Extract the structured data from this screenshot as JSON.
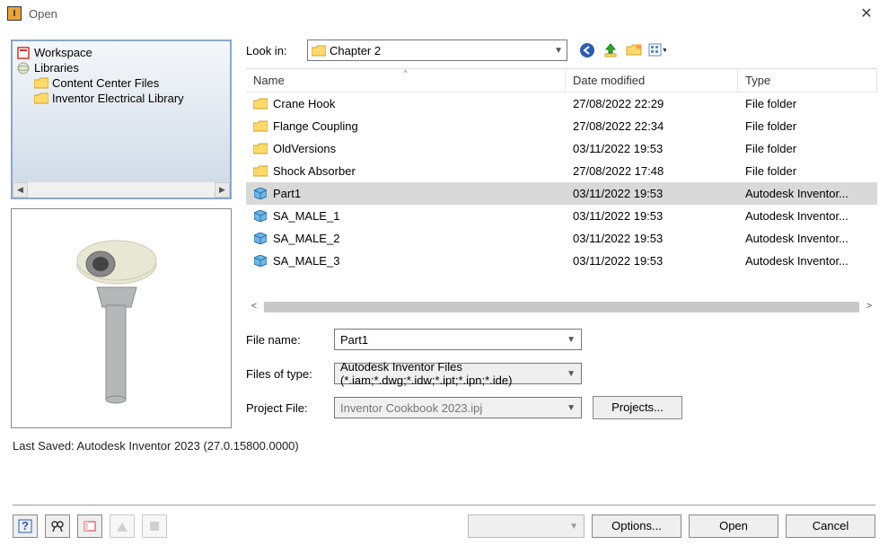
{
  "title": "Open",
  "tree": {
    "workspace": "Workspace",
    "libraries": "Libraries",
    "items": [
      {
        "label": "Content Center Files"
      },
      {
        "label": "Inventor Electrical Library"
      }
    ]
  },
  "lookin": {
    "label": "Look in:",
    "value": "Chapter 2"
  },
  "columns": {
    "name": "Name",
    "date": "Date modified",
    "type": "Type"
  },
  "files": [
    {
      "icon": "folder",
      "name": "Crane Hook",
      "date": "27/08/2022 22:29",
      "type": "File folder",
      "selected": false
    },
    {
      "icon": "folder",
      "name": "Flange Coupling",
      "date": "27/08/2022 22:34",
      "type": "File folder",
      "selected": false
    },
    {
      "icon": "folder",
      "name": "OldVersions",
      "date": "03/11/2022 19:53",
      "type": "File folder",
      "selected": false
    },
    {
      "icon": "folder",
      "name": "Shock Absorber",
      "date": "27/08/2022 17:48",
      "type": "File folder",
      "selected": false
    },
    {
      "icon": "part",
      "name": "Part1",
      "date": "03/11/2022 19:53",
      "type": "Autodesk Inventor...",
      "selected": true
    },
    {
      "icon": "part",
      "name": "SA_MALE_1",
      "date": "03/11/2022 19:53",
      "type": "Autodesk Inventor...",
      "selected": false
    },
    {
      "icon": "part",
      "name": "SA_MALE_2",
      "date": "03/11/2022 19:53",
      "type": "Autodesk Inventor...",
      "selected": false
    },
    {
      "icon": "part",
      "name": "SA_MALE_3",
      "date": "03/11/2022 19:53",
      "type": "Autodesk Inventor...",
      "selected": false
    }
  ],
  "form": {
    "file_name_label": "File name:",
    "file_name_value": "Part1",
    "file_type_label": "Files of type:",
    "file_type_value": "Autodesk Inventor Files (*.iam;*.dwg;*.idw;*.ipt;*.ipn;*.ide)",
    "project_label": "Project File:",
    "project_value": "Inventor Cookbook 2023.ipj",
    "projects_btn": "Projects..."
  },
  "last_saved": "Last Saved: Autodesk Inventor 2023 (27.0.15800.0000)",
  "buttons": {
    "options": "Options...",
    "open": "Open",
    "cancel": "Cancel"
  },
  "colors": {
    "folder_fill": "#ffd96b",
    "folder_stroke": "#caa12a",
    "part_fill": "#6fb7e8",
    "part_stroke": "#2a6ea5",
    "back_icon": "#2a5db0",
    "up_icon": "#2fa82f",
    "new_icon": "#e8a33d",
    "preview_body": "#b5b8b8",
    "preview_ring": "#e8e7d4"
  }
}
